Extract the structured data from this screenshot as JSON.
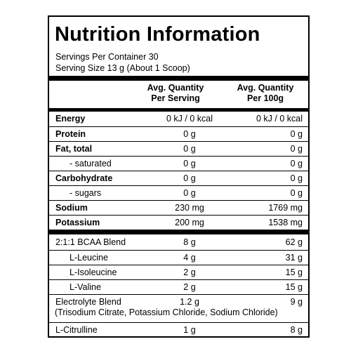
{
  "title": "Nutrition Information",
  "servings_per_container": "Servings Per Container 30",
  "serving_size": "Serving Size 13 g (About 1 Scoop)",
  "headers": {
    "col1_line1": "Avg. Quantity",
    "col1_line2": "Per Serving",
    "col2_line1": "Avg. Quantity",
    "col2_line2": "Per 100g"
  },
  "nutrients": [
    {
      "label": "Energy",
      "per_serving": "0 kJ / 0 kcal",
      "per_100g": "0 kJ / 0 kcal"
    },
    {
      "label": "Protein",
      "per_serving": "0 g",
      "per_100g": "0 g"
    },
    {
      "label": "Fat, total",
      "per_serving": "0 g",
      "per_100g": "0 g"
    },
    {
      "label": "- saturated",
      "per_serving": "0 g",
      "per_100g": "0 g"
    },
    {
      "label": "Carbohydrate",
      "per_serving": "0 g",
      "per_100g": "0 g"
    },
    {
      "label": "- sugars",
      "per_serving": "0 g",
      "per_100g": "0 g"
    },
    {
      "label": "Sodium",
      "per_serving": "230 mg",
      "per_100g": "1769 mg"
    },
    {
      "label": "Potassium",
      "per_serving": "200 mg",
      "per_100g": "1538 mg"
    }
  ],
  "ingredients": [
    {
      "label": "2:1:1 BCAA Blend",
      "per_serving": "8 g",
      "per_100g": "62 g"
    },
    {
      "label": "L-Leucine",
      "per_serving": "4 g",
      "per_100g": "31 g"
    },
    {
      "label": "L-Isoleucine",
      "per_serving": "2 g",
      "per_100g": "15 g"
    },
    {
      "label": "L-Valine",
      "per_serving": "2 g",
      "per_100g": "15 g"
    },
    {
      "label": "Electrolyte Blend",
      "per_serving": "1.2 g",
      "per_100g": "9 g"
    },
    {
      "label": "L-Citrulline",
      "per_serving": "1 g",
      "per_100g": "8 g"
    }
  ],
  "electrolyte_sub": "(Trisodium Citrate, Potassium Chloride, Sodium Chloride)"
}
